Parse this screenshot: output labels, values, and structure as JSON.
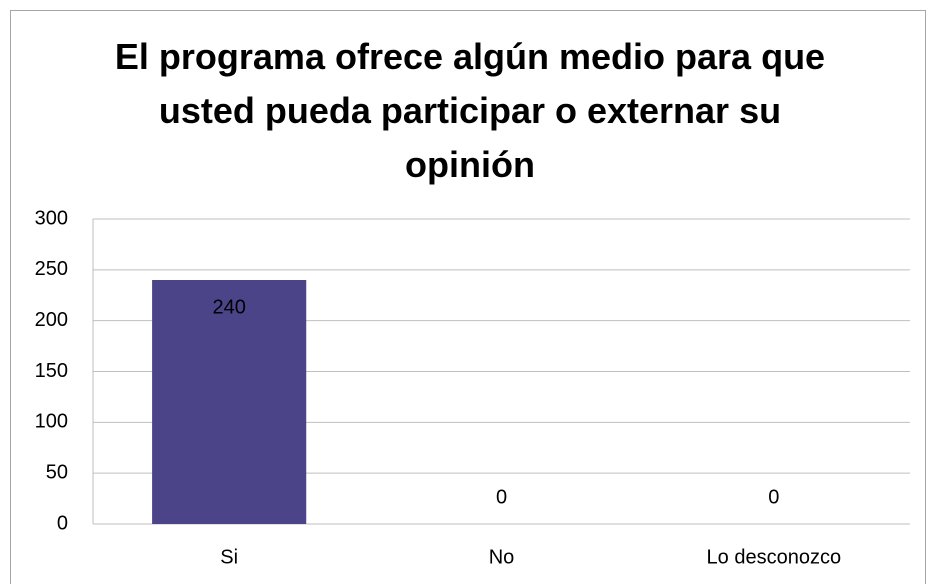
{
  "chart_data": {
    "type": "bar",
    "title": "El programa ofrece algún medio para que usted pueda participar o externar su opinión",
    "categories": [
      "Si",
      "No",
      "Lo desconozco"
    ],
    "values": [
      240,
      0,
      0
    ],
    "color": "#4b4489",
    "ylim": [
      0,
      300
    ],
    "yticks": [
      0,
      50,
      100,
      150,
      200,
      250,
      300
    ],
    "grid": true,
    "data_labels": true
  }
}
